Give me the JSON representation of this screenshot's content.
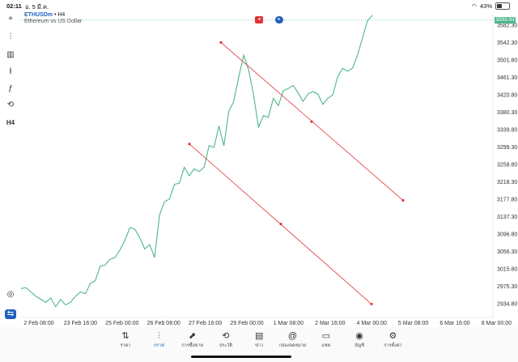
{
  "status": {
    "time": "02:11",
    "date": "อ. 5 มี.ค.",
    "battery": "43%",
    "battery_level": 0.43
  },
  "symbol": {
    "name": "ETHUSDm",
    "separator": "•",
    "timeframe": "H4",
    "description": "Ethereum vs US Dollar"
  },
  "current_price": "3593.93",
  "tools": [
    {
      "name": "crosshair-icon",
      "glyph": "+"
    },
    {
      "name": "candlestick-icon",
      "glyph": "⫶"
    },
    {
      "name": "chart-type-icon",
      "glyph": "▥"
    },
    {
      "name": "indicators-icon",
      "glyph": "⫲"
    },
    {
      "name": "function-icon",
      "glyph": "ƒ"
    },
    {
      "name": "objects-icon",
      "glyph": "⟲"
    },
    {
      "name": "timeframe-label",
      "glyph": "H4"
    }
  ],
  "chart_data": {
    "type": "line",
    "price_ticks": [
      "3582.30",
      "3542.30",
      "3501.80",
      "3461.30",
      "3420.80",
      "3380.30",
      "3339.80",
      "3299.30",
      "3258.80",
      "3218.30",
      "3177.80",
      "3137.30",
      "3096.80",
      "3056.30",
      "3015.80",
      "2975.30",
      "2934.80"
    ],
    "time_ticks": [
      "2 Feb 08:00",
      "23 Feb 16:00",
      "25 Feb 00:00",
      "26 Feb 08:00",
      "27 Feb 16:00",
      "29 Feb 00:00",
      "1 Mar 08:00",
      "2 Mar 16:00",
      "4 Mar 00:00",
      "5 Mar 08:00",
      "6 Mar 16:00",
      "8 Mar 00:00"
    ],
    "series": [
      {
        "values": [
          2970,
          2972,
          2962,
          2952,
          2945,
          2938,
          2948,
          2928,
          2945,
          2932,
          2938,
          2952,
          2962,
          2958,
          2982,
          2988,
          3022,
          3025,
          3038,
          3042,
          3060,
          3082,
          3112,
          3108,
          3088,
          3062,
          3072,
          3042,
          3142,
          3172,
          3178,
          3212,
          3215,
          3252,
          3232,
          3248,
          3242,
          3252,
          3302,
          3298,
          3348,
          3302,
          3382,
          3405,
          3462,
          3512,
          3478,
          3420,
          3345,
          3372,
          3368,
          3412,
          3395,
          3430,
          3435,
          3442,
          3425,
          3405,
          3422,
          3428,
          3422,
          3398,
          3412,
          3420,
          3462,
          3482,
          3475,
          3482,
          3512,
          3552,
          3592,
          3605
        ]
      }
    ]
  },
  "trendlines": [
    {
      "start": {
        "time": "28 Feb 18:00",
        "price": 3542
      },
      "mid": {
        "time": "2 Mar 16:00",
        "price": 3358
      },
      "end": {
        "time": "5 Mar 12:00",
        "price": 3175
      }
    },
    {
      "start": {
        "time": "27 Feb 18:00",
        "price": 3306
      },
      "mid": {
        "time": "1 Mar 12:00",
        "price": 3120
      },
      "end": {
        "time": "4 Mar 08:00",
        "price": 2934
      }
    }
  ],
  "tabs": [
    {
      "name": "tab-quotes",
      "glyph": "⇅",
      "label": "ราคา"
    },
    {
      "name": "tab-chart",
      "glyph": "⫶",
      "label": "กราฟ",
      "active": true
    },
    {
      "name": "tab-trade",
      "glyph": "⬈",
      "label": "การซื้อขาย"
    },
    {
      "name": "tab-history",
      "glyph": "⟲",
      "label": "ประวัติ"
    },
    {
      "name": "tab-news",
      "glyph": "▤",
      "label": "ข่าว"
    },
    {
      "name": "tab-mailbox",
      "glyph": "@",
      "label": "กล่องจดหมาย"
    },
    {
      "name": "tab-chat",
      "glyph": "▭",
      "label": "แชท"
    },
    {
      "name": "tab-accounts",
      "glyph": "◉",
      "label": "บัญชี"
    },
    {
      "name": "tab-settings",
      "glyph": "⚙",
      "label": "การตั้งค่า"
    }
  ],
  "colors": {
    "line": "#4fb58e",
    "trend": "#e0343a",
    "accent": "#1f5fbf"
  }
}
